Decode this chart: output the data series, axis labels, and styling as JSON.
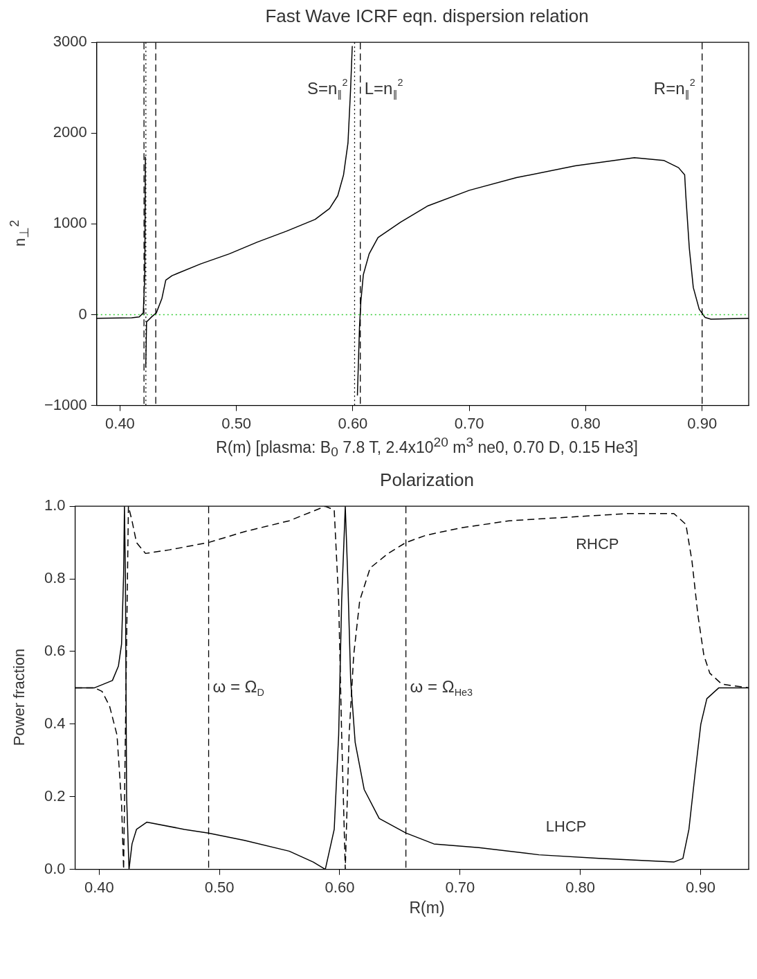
{
  "chart_data": [
    {
      "type": "line",
      "title": "Fast Wave ICRF eqn. dispersion relation",
      "xlabel": "R(m) [plasma: B$_{0}$ 7.8 T, 2.4x10$^{20}$ m$^{3}$ ne0, 0.70 D, 0.15 He3]",
      "ylabel": "n$_{⊥}$$^{2}$",
      "xlim": [
        0.38,
        0.94
      ],
      "ylim": [
        -1000,
        3000
      ],
      "xticks": [
        {
          "value": 0.4,
          "label": "0.40"
        },
        {
          "value": 0.5,
          "label": "0.50"
        },
        {
          "value": 0.6,
          "label": "0.60"
        },
        {
          "value": 0.7,
          "label": "0.70"
        },
        {
          "value": 0.8,
          "label": "0.80"
        },
        {
          "value": 0.9,
          "label": "0.90"
        }
      ],
      "yticks": [
        {
          "value": -1000,
          "label": "−1000"
        },
        0,
        1000,
        2000,
        3000
      ],
      "legend": false,
      "marker": "none",
      "line_style": "solid",
      "series": [
        {
          "color": "#000000",
          "x": [
            0.38,
            0.41,
            0.4165,
            0.42,
            0.4213,
            0.4218,
            0.4219,
            0.4221,
            0.4228,
            0.4275,
            0.4312,
            0.436,
            0.4393,
            0.4447,
            0.4693,
            0.4939,
            0.518,
            0.543,
            0.5676,
            0.58,
            0.587,
            0.592,
            0.5958,
            0.598,
            0.5995,
            0.6017,
            0.6039,
            0.6057,
            0.6069,
            0.609,
            0.614,
            0.6216,
            0.641,
            0.6646,
            0.7,
            0.7405,
            0.791,
            0.8418,
            0.867,
            0.8797,
            0.885,
            0.886,
            0.889,
            0.8924,
            0.8975,
            0.9025,
            0.9076,
            0.94
          ],
          "values": [
            -40,
            -35,
            -25,
            20,
            440,
            1740,
            null,
            -580,
            -80,
            -20,
            20,
            180,
            380,
            430,
            560,
            670,
            800,
            920,
            1050,
            1170,
            1310,
            1540,
            1890,
            2470,
            2960,
            null,
            -890,
            -140,
            150,
            440,
            670,
            850,
            1020,
            1200,
            1370,
            1510,
            1640,
            1730,
            1700,
            1620,
            1540,
            1310,
            730,
            300,
            60,
            -30,
            -50,
            -40
          ]
        }
      ],
      "ref_lines": [
        {
          "axis": "x",
          "value": 0.4206,
          "color": "#000000",
          "line_style": "dashed"
        },
        {
          "axis": "x",
          "value": 0.4222,
          "color": "#000000",
          "line_style": "dotted"
        },
        {
          "axis": "x",
          "value": 0.4307,
          "color": "#000000",
          "line_style": "dashed"
        },
        {
          "axis": "x",
          "value": 0.6015,
          "color": "#000000",
          "line_style": "dotted",
          "label": "S=n$_{∥}$$^{2}$"
        },
        {
          "axis": "x",
          "value": 0.6064,
          "color": "#000000",
          "line_style": "dashed",
          "label": "L=n$_{∥}$$^{2}$"
        },
        {
          "axis": "x",
          "value": 0.9,
          "color": "#000000",
          "line_style": "dashed",
          "label": "R=n$_{∥}$$^{2}$"
        },
        {
          "axis": "y",
          "value": 0,
          "color": "#33cc33",
          "line_style": "dotted"
        }
      ]
    },
    {
      "type": "line",
      "title": "Polarization",
      "xlabel": "R(m)",
      "ylabel": "Power fraction",
      "xlim": [
        0.38,
        0.94
      ],
      "ylim": [
        0,
        1
      ],
      "xticks": [
        {
          "value": 0.4,
          "label": "0.40"
        },
        {
          "value": 0.5,
          "label": "0.50"
        },
        {
          "value": 0.6,
          "label": "0.60"
        },
        {
          "value": 0.7,
          "label": "0.70"
        },
        {
          "value": 0.8,
          "label": "0.80"
        },
        {
          "value": 0.9,
          "label": "0.90"
        }
      ],
      "yticks": [
        {
          "value": 0,
          "label": "0.0"
        },
        {
          "value": 0.2,
          "label": "0.2"
        },
        {
          "value": 0.4,
          "label": "0.4"
        },
        {
          "value": 0.6,
          "label": "0.6"
        },
        {
          "value": 0.8,
          "label": "0.8"
        },
        {
          "value": 1,
          "label": "1.0"
        }
      ],
      "legend": false,
      "marker": "none",
      "series": [
        {
          "name": "LHCP",
          "color": "#000000",
          "line_style": "solid",
          "x": [
            0.38,
            0.3961,
            0.4036,
            0.411,
            0.416,
            0.4186,
            0.4203,
            0.421,
            0.4218,
            0.4228,
            0.4248,
            0.4273,
            0.431,
            0.4397,
            0.4709,
            0.4908,
            0.5207,
            0.558,
            0.578,
            0.588,
            0.5954,
            0.5991,
            0.6016,
            0.6046,
            0.6066,
            0.6091,
            0.6128,
            0.6203,
            0.6328,
            0.655,
            0.6783,
            0.7157,
            0.7656,
            0.8155,
            0.8778,
            0.8853,
            0.8903,
            0.8953,
            0.9002,
            0.9052,
            0.9152,
            0.94
          ],
          "values": [
            0.5,
            0.5,
            0.51,
            0.52,
            0.56,
            0.62,
            0.81,
            1,
            0.81,
            0.2,
            0,
            0.07,
            0.11,
            0.13,
            0.11,
            0.1,
            0.08,
            0.05,
            0.02,
            0,
            0.11,
            0.37,
            0.74,
            1,
            0.81,
            0.52,
            0.35,
            0.22,
            0.14,
            0.1,
            0.07,
            0.06,
            0.04,
            0.03,
            0.02,
            0.03,
            0.11,
            0.26,
            0.4,
            0.47,
            0.5,
            0.5
          ]
        },
        {
          "name": "RHCP",
          "color": "#000000",
          "line_style": "dashed",
          "x": [
            0.38,
            0.3961,
            0.4024,
            0.4086,
            0.4148,
            0.4186,
            0.4203,
            0.4243,
            0.4273,
            0.431,
            0.4385,
            0.4584,
            0.4908,
            0.5207,
            0.558,
            0.588,
            0.5954,
            0.5991,
            0.6016,
            0.6046,
            0.6078,
            0.6116,
            0.6166,
            0.6253,
            0.6402,
            0.655,
            0.6716,
            0.7,
            0.7406,
            0.7905,
            0.8404,
            0.8778,
            0.8878,
            0.8928,
            0.8978,
            0.9027,
            0.9077,
            0.9177,
            0.94
          ],
          "values": [
            0.5,
            0.5,
            0.49,
            0.45,
            0.37,
            0.18,
            0,
            1,
            0.96,
            0.9,
            0.87,
            0.88,
            0.9,
            0.93,
            0.96,
            1,
            0.99,
            0.74,
            0.37,
            0,
            0.37,
            0.59,
            0.74,
            0.83,
            0.87,
            0.9,
            0.92,
            0.94,
            0.96,
            0.97,
            0.98,
            0.98,
            0.95,
            0.85,
            0.7,
            0.59,
            0.54,
            0.51,
            0.5
          ]
        }
      ],
      "ref_lines": [
        {
          "axis": "x",
          "value": 0.491,
          "color": "#000000",
          "line_style": "dashed",
          "label": "ω = Ω$_{D}$"
        },
        {
          "axis": "x",
          "value": 0.655,
          "color": "#000000",
          "line_style": "dashed",
          "label": "ω = Ω$_{He3}$"
        }
      ]
    }
  ]
}
